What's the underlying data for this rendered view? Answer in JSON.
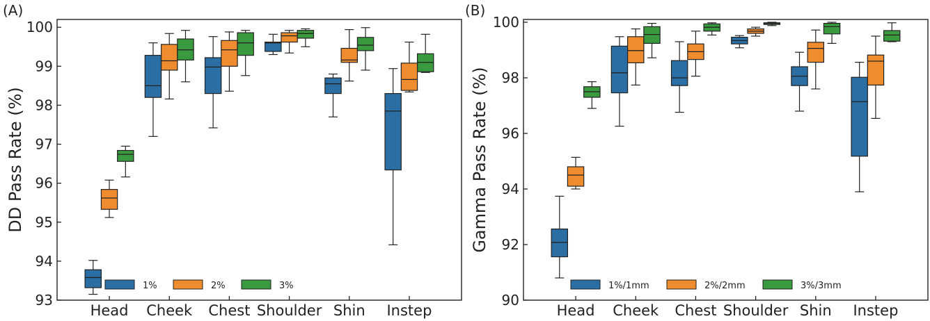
{
  "chart_data": [
    {
      "type": "box",
      "panel_label": "(A)",
      "ylabel": "DD Pass Rate (%)",
      "xlabel": "",
      "ylim": [
        93,
        100.2
      ],
      "yticks": [
        "93",
        "94",
        "95",
        "96",
        "97",
        "98",
        "99",
        "100"
      ],
      "categories": [
        "Head",
        "Cheek",
        "Chest",
        "Shoulder",
        "Shin",
        "Instep"
      ],
      "legend_position": "bottom-left",
      "series": [
        {
          "name": "1%",
          "color": "#2b6ea3",
          "boxes": [
            {
              "min": 93.15,
              "q1": 93.32,
              "median": 93.58,
              "q3": 93.78,
              "max": 94.02
            },
            {
              "min": 97.2,
              "q1": 98.2,
              "median": 98.5,
              "q3": 99.28,
              "max": 99.6
            },
            {
              "min": 97.42,
              "q1": 98.3,
              "median": 98.98,
              "q3": 99.22,
              "max": 99.76
            },
            {
              "min": 99.3,
              "q1": 99.38,
              "median": 99.6,
              "q3": 99.62,
              "max": 99.82
            },
            {
              "min": 97.7,
              "q1": 98.3,
              "median": 98.55,
              "q3": 98.7,
              "max": 98.8
            },
            {
              "min": 94.42,
              "q1": 96.34,
              "median": 97.85,
              "q3": 98.3,
              "max": 98.94
            }
          ]
        },
        {
          "name": "2%",
          "color": "#ef8c2f",
          "boxes": [
            {
              "min": 95.12,
              "q1": 95.33,
              "median": 95.62,
              "q3": 95.84,
              "max": 96.08
            },
            {
              "min": 98.16,
              "q1": 98.9,
              "median": 99.14,
              "q3": 99.56,
              "max": 99.84
            },
            {
              "min": 98.36,
              "q1": 99.0,
              "median": 99.42,
              "q3": 99.66,
              "max": 99.88
            },
            {
              "min": 99.34,
              "q1": 99.62,
              "median": 99.78,
              "q3": 99.86,
              "max": 99.92
            },
            {
              "min": 98.62,
              "q1": 99.1,
              "median": 99.16,
              "q3": 99.46,
              "max": 99.94
            },
            {
              "min": 98.34,
              "q1": 98.38,
              "median": 98.66,
              "q3": 99.08,
              "max": 99.62
            }
          ]
        },
        {
          "name": "3%",
          "color": "#3a9a3f",
          "boxes": [
            {
              "min": 96.16,
              "q1": 96.56,
              "median": 96.74,
              "q3": 96.84,
              "max": 96.95
            },
            {
              "min": 98.6,
              "q1": 99.16,
              "median": 99.42,
              "q3": 99.7,
              "max": 99.92
            },
            {
              "min": 98.76,
              "q1": 99.28,
              "median": 99.6,
              "q3": 99.86,
              "max": 99.92
            },
            {
              "min": 99.5,
              "q1": 99.72,
              "median": 99.84,
              "q3": 99.92,
              "max": 99.96
            },
            {
              "min": 98.9,
              "q1": 99.4,
              "median": 99.54,
              "q3": 99.74,
              "max": 99.99
            },
            {
              "min": 98.84,
              "q1": 98.86,
              "median": 99.1,
              "q3": 99.32,
              "max": 99.82
            }
          ]
        }
      ]
    },
    {
      "type": "box",
      "panel_label": "(B)",
      "ylabel": "Gamma Pass Rate (%)",
      "xlabel": "",
      "ylim": [
        90,
        100.1
      ],
      "yticks": [
        "90",
        "92",
        "94",
        "96",
        "98",
        "100"
      ],
      "categories": [
        "Head",
        "Cheek",
        "Chest",
        "Shoulder",
        "Shin",
        "Instep"
      ],
      "legend_position": "bottom-center",
      "series": [
        {
          "name": "1%/1mm",
          "color": "#2b6ea3",
          "boxes": [
            {
              "min": 90.8,
              "q1": 91.56,
              "median": 92.08,
              "q3": 92.56,
              "max": 93.74
            },
            {
              "min": 96.26,
              "q1": 97.46,
              "median": 98.18,
              "q3": 99.14,
              "max": 99.48
            },
            {
              "min": 96.76,
              "q1": 97.72,
              "median": 98.0,
              "q3": 98.62,
              "max": 99.3
            },
            {
              "min": 99.08,
              "q1": 99.22,
              "median": 99.34,
              "q3": 99.46,
              "max": 99.52
            },
            {
              "min": 96.8,
              "q1": 97.72,
              "median": 98.06,
              "q3": 98.4,
              "max": 98.92
            },
            {
              "min": 93.9,
              "q1": 95.18,
              "median": 97.14,
              "q3": 98.02,
              "max": 98.56
            }
          ]
        },
        {
          "name": "2%/2mm",
          "color": "#ef8c2f",
          "boxes": [
            {
              "min": 94.0,
              "q1": 94.1,
              "median": 94.5,
              "q3": 94.8,
              "max": 95.14
            },
            {
              "min": 97.74,
              "q1": 98.54,
              "median": 98.98,
              "q3": 99.48,
              "max": 99.76
            },
            {
              "min": 98.06,
              "q1": 98.66,
              "median": 98.94,
              "q3": 99.22,
              "max": 99.68
            },
            {
              "min": 99.5,
              "q1": 99.6,
              "median": 99.68,
              "q3": 99.76,
              "max": 99.82
            },
            {
              "min": 97.6,
              "q1": 98.56,
              "median": 99.06,
              "q3": 99.28,
              "max": 99.72
            },
            {
              "min": 96.54,
              "q1": 97.74,
              "median": 98.6,
              "q3": 98.82,
              "max": 99.5
            }
          ]
        },
        {
          "name": "3%/3mm",
          "color": "#3a9a3f",
          "boxes": [
            {
              "min": 96.9,
              "q1": 97.3,
              "median": 97.5,
              "q3": 97.68,
              "max": 97.86
            },
            {
              "min": 98.72,
              "q1": 99.24,
              "median": 99.56,
              "q3": 99.84,
              "max": 99.96
            },
            {
              "min": 99.54,
              "q1": 99.68,
              "median": 99.82,
              "q3": 99.94,
              "max": 99.98
            },
            {
              "min": 99.88,
              "q1": 99.92,
              "median": 99.96,
              "q3": 99.98,
              "max": 100.0
            },
            {
              "min": 99.24,
              "q1": 99.58,
              "median": 99.84,
              "q3": 99.96,
              "max": 100.0
            },
            {
              "min": 99.3,
              "q1": 99.32,
              "median": 99.54,
              "q3": 99.7,
              "max": 99.98
            }
          ]
        }
      ]
    }
  ]
}
